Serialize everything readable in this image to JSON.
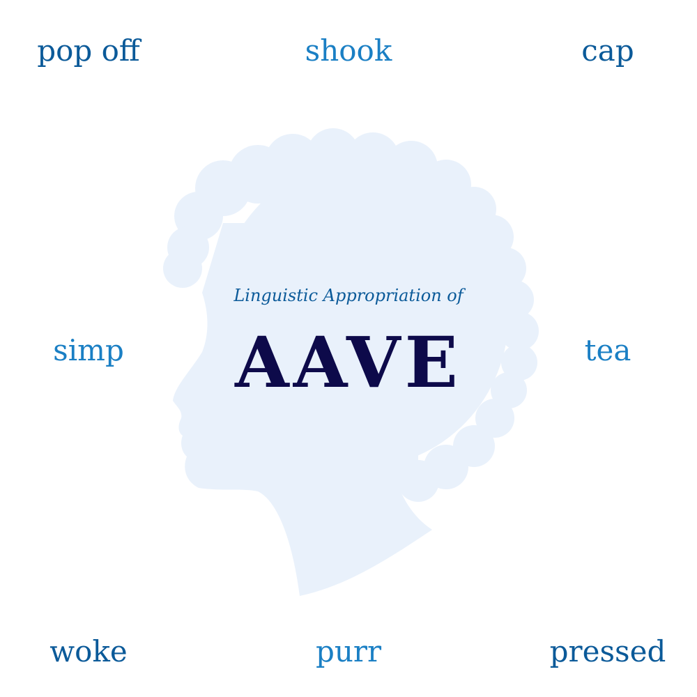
{
  "subtitle": "Linguistic Appropriation of",
  "title": "AAVE",
  "words": {
    "top_left": "pop off",
    "top_center": "shook",
    "top_right": "cap",
    "middle_left": "simp",
    "middle_right": "tea",
    "bottom_left": "woke",
    "bottom_center": "purr",
    "bottom_right": "pressed"
  },
  "colors": {
    "background": "#ffffff",
    "silhouette": "#e9f1fb",
    "word_dark": "#0b5a99",
    "word_light": "#1a7fc4",
    "title": "#0d0a4a"
  },
  "icons": {
    "silhouette": "afro-profile-silhouette-icon"
  }
}
